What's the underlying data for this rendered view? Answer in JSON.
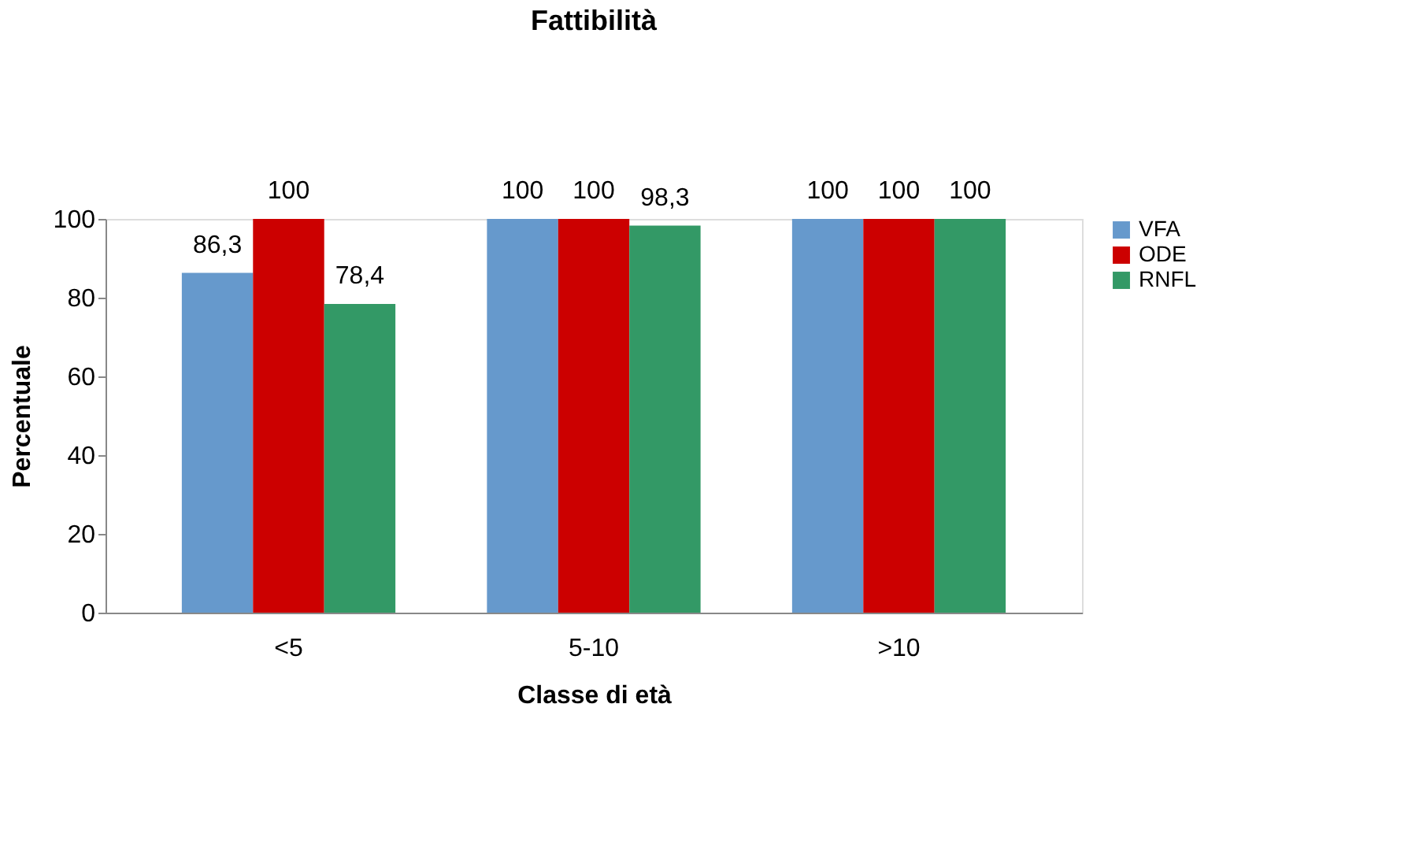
{
  "chart_data": {
    "type": "bar",
    "title": "Fattibilità",
    "xlabel": "Classe di età",
    "ylabel": "Percentuale",
    "categories": [
      "<5",
      "5-10",
      ">10"
    ],
    "series": [
      {
        "name": "VFA",
        "color": "#6699cc",
        "values": [
          86.3,
          100,
          100
        ],
        "value_labels": [
          "86,3",
          "100",
          "100"
        ]
      },
      {
        "name": "ODE",
        "color": "#cc0000",
        "values": [
          100,
          100,
          100
        ],
        "value_labels": [
          "100",
          "100",
          "100"
        ]
      },
      {
        "name": "RNFL",
        "color": "#339966",
        "values": [
          78.4,
          98.3,
          100
        ],
        "value_labels": [
          "78,4",
          "98,3",
          "100"
        ]
      }
    ],
    "ylim": [
      0,
      100
    ],
    "yticks": [
      0,
      20,
      40,
      60,
      80,
      100
    ],
    "legend": "right"
  }
}
